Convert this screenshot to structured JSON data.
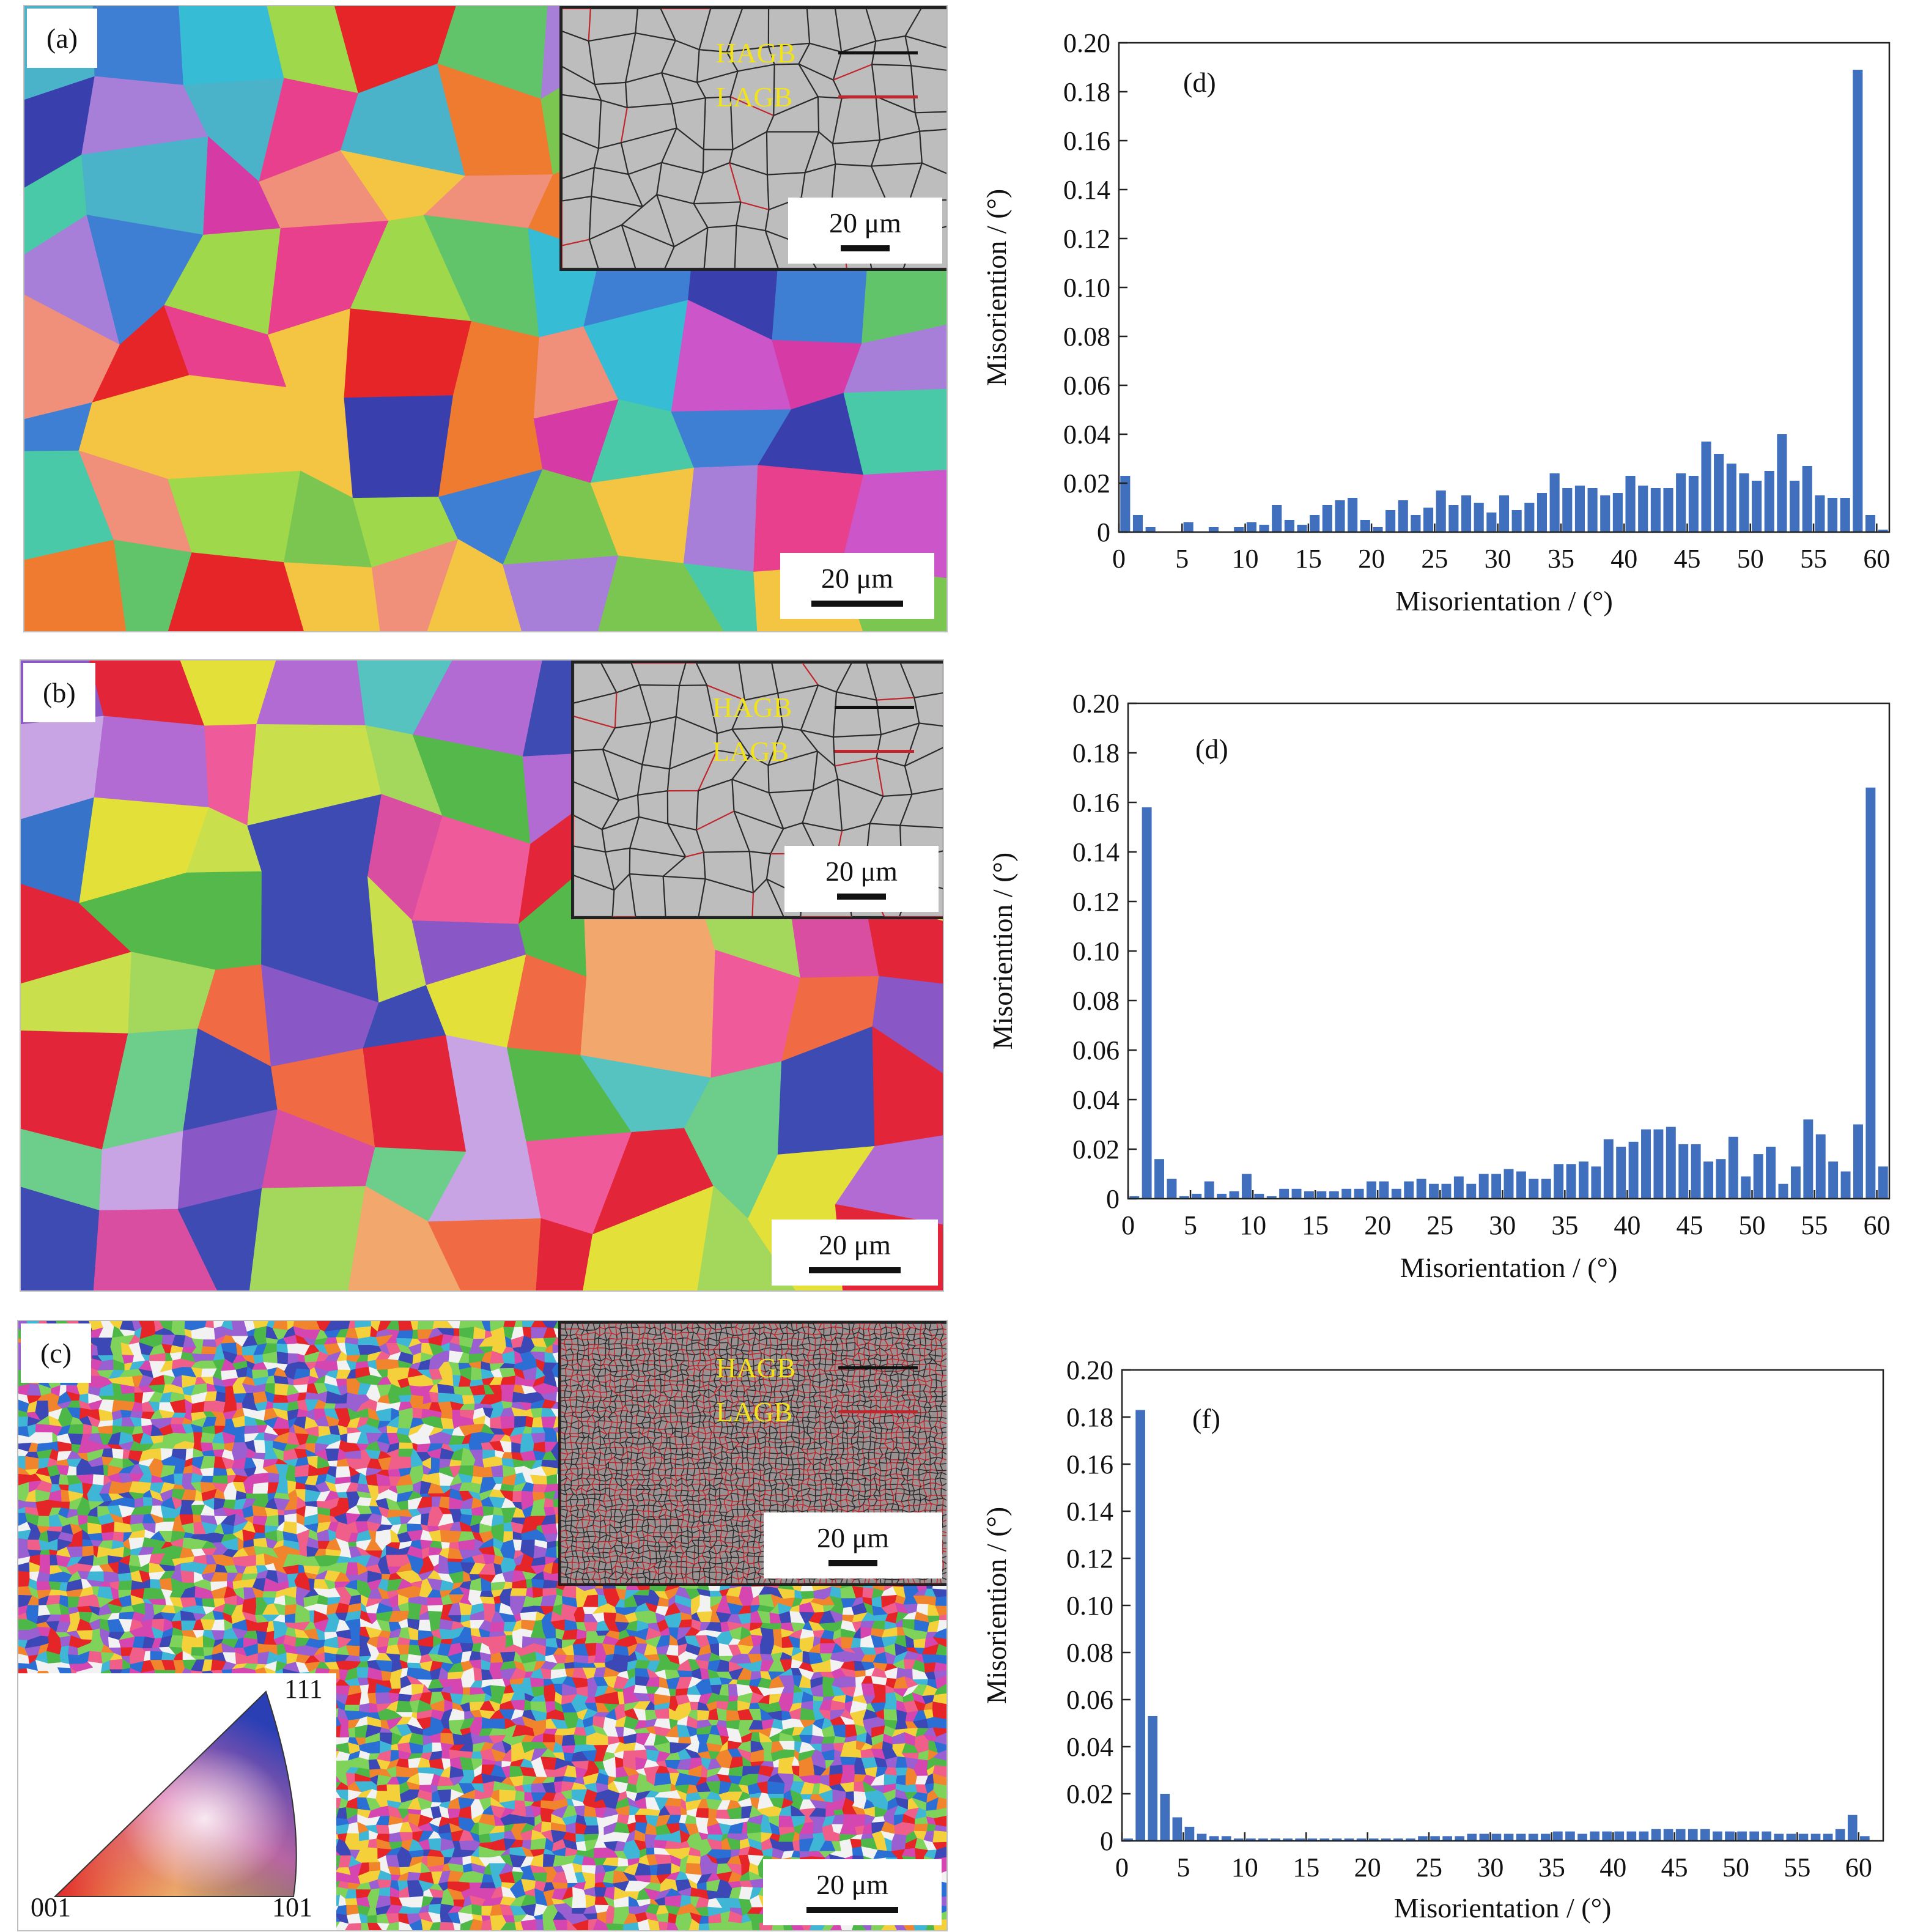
{
  "panels": [
    {
      "label": "(a)",
      "scale_bar": "20 μm",
      "inset": {
        "scale_bar": "20 μm",
        "legend": [
          {
            "name": "HAGB",
            "color": "#111111"
          },
          {
            "name": "LAGB",
            "color": "#c0262d"
          }
        ]
      },
      "colors": [
        "#a77fd8",
        "#e52528",
        "#4ab3c9",
        "#ef7b30",
        "#7bc650",
        "#d63aa5",
        "#3a3fae",
        "#49c9a7",
        "#e8408d",
        "#9fd84a",
        "#3f7fd3",
        "#f08f7a",
        "#62c46a",
        "#cb55c9",
        "#36bcd4",
        "#f4c542"
      ]
    },
    {
      "label": "(b)",
      "scale_bar": "20 μm",
      "inset": {
        "scale_bar": "20 μm",
        "legend": [
          {
            "name": "HAGB",
            "color": "#111111"
          },
          {
            "name": "LAGB",
            "color": "#c0262d"
          }
        ]
      },
      "colors": [
        "#e3253a",
        "#55b84a",
        "#3e4bb3",
        "#c9e04c",
        "#f06a43",
        "#8a57c7",
        "#d94ea0",
        "#56c3c0",
        "#3773c9",
        "#f2a76c",
        "#a3d85c",
        "#e4e03a",
        "#b16bd2",
        "#ef5a9a",
        "#6dcd8a",
        "#c8a4e5"
      ]
    },
    {
      "label": "(c)",
      "scale_bar": "20 μm",
      "inset": {
        "scale_bar": "20 μm",
        "legend": [
          {
            "name": "HAGB",
            "color": "#111111"
          },
          {
            "name": "LAGB",
            "color": "#c0262d"
          }
        ]
      },
      "ipf_key": {
        "corners": [
          "001",
          "101",
          "111"
        ]
      },
      "colors": [
        "#e52528",
        "#4db848",
        "#3b48b5",
        "#d646b0",
        "#f0852e",
        "#f4d13a",
        "#3fb6d6",
        "#9a5fd1",
        "#ef5f8a",
        "#7fd25a",
        "#f2f2f2",
        "#2c6fd4"
      ]
    }
  ],
  "chart_data": [
    {
      "type": "bar",
      "panel_label": "(d)",
      "xlabel": "Misorientation / (°)",
      "ylabel": "Misoriention / (°)",
      "xlim": [
        0,
        61
      ],
      "ylim": [
        0,
        0.2
      ],
      "x_ticks": [
        "0",
        "5",
        "10",
        "15",
        "20",
        "25",
        "30",
        "35",
        "40",
        "45",
        "50",
        "55",
        "60"
      ],
      "y_ticks": [
        "0",
        "0.02",
        "0.04",
        "0.06",
        "0.08",
        "0.10",
        "0.12",
        "0.14",
        "0.16",
        "0.18",
        "0.20"
      ],
      "x": [
        0,
        1,
        2,
        3,
        4,
        5,
        6,
        7,
        8,
        9,
        10,
        11,
        12,
        13,
        14,
        15,
        16,
        17,
        18,
        19,
        20,
        21,
        22,
        23,
        24,
        25,
        26,
        27,
        28,
        29,
        30,
        31,
        32,
        33,
        34,
        35,
        36,
        37,
        38,
        39,
        40,
        41,
        42,
        43,
        44,
        45,
        46,
        47,
        48,
        49,
        50,
        51,
        52,
        53,
        54,
        55,
        56,
        57,
        58,
        59,
        60
      ],
      "values": [
        0.023,
        0.007,
        0.002,
        0.0,
        0.0,
        0.004,
        0.0,
        0.002,
        0.0,
        0.002,
        0.004,
        0.003,
        0.011,
        0.005,
        0.003,
        0.007,
        0.011,
        0.013,
        0.014,
        0.005,
        0.002,
        0.009,
        0.013,
        0.007,
        0.01,
        0.017,
        0.011,
        0.015,
        0.012,
        0.008,
        0.015,
        0.009,
        0.012,
        0.016,
        0.024,
        0.018,
        0.019,
        0.018,
        0.015,
        0.016,
        0.023,
        0.019,
        0.018,
        0.018,
        0.024,
        0.023,
        0.037,
        0.032,
        0.028,
        0.024,
        0.021,
        0.025,
        0.04,
        0.021,
        0.027,
        0.015,
        0.014,
        0.014,
        0.189,
        0.007,
        0.001
      ]
    },
    {
      "type": "bar",
      "panel_label": "(d)",
      "xlabel": "Misorientation / (°)",
      "ylabel": "Misoriention / (°)",
      "xlim": [
        0,
        61
      ],
      "ylim": [
        0,
        0.2
      ],
      "x_ticks": [
        "0",
        "5",
        "10",
        "15",
        "20",
        "25",
        "30",
        "35",
        "40",
        "45",
        "50",
        "55",
        "60"
      ],
      "y_ticks": [
        "0",
        "0.02",
        "0.04",
        "0.06",
        "0.08",
        "0.10",
        "0.12",
        "0.14",
        "0.16",
        "0.18",
        "0.20"
      ],
      "x": [
        0,
        1,
        2,
        3,
        4,
        5,
        6,
        7,
        8,
        9,
        10,
        11,
        12,
        13,
        14,
        15,
        16,
        17,
        18,
        19,
        20,
        21,
        22,
        23,
        24,
        25,
        26,
        27,
        28,
        29,
        30,
        31,
        32,
        33,
        34,
        35,
        36,
        37,
        38,
        39,
        40,
        41,
        42,
        43,
        44,
        45,
        46,
        47,
        48,
        49,
        50,
        51,
        52,
        53,
        54,
        55,
        56,
        57,
        58,
        59,
        60
      ],
      "values": [
        0.001,
        0.158,
        0.016,
        0.008,
        0.001,
        0.002,
        0.007,
        0.002,
        0.003,
        0.01,
        0.002,
        0.001,
        0.004,
        0.004,
        0.003,
        0.003,
        0.003,
        0.004,
        0.004,
        0.007,
        0.007,
        0.004,
        0.007,
        0.008,
        0.006,
        0.006,
        0.009,
        0.006,
        0.01,
        0.01,
        0.012,
        0.011,
        0.008,
        0.008,
        0.014,
        0.014,
        0.015,
        0.013,
        0.024,
        0.021,
        0.023,
        0.028,
        0.028,
        0.029,
        0.022,
        0.022,
        0.015,
        0.016,
        0.025,
        0.009,
        0.018,
        0.021,
        0.006,
        0.013,
        0.032,
        0.026,
        0.015,
        0.011,
        0.03,
        0.166,
        0.013
      ]
    },
    {
      "type": "bar",
      "panel_label": "(f)",
      "xlabel": "Misorientation / (°)",
      "ylabel": "Misoriention / (°)",
      "xlim": [
        0,
        62
      ],
      "ylim": [
        0,
        0.2
      ],
      "x_ticks": [
        "0",
        "5",
        "10",
        "15",
        "20",
        "25",
        "30",
        "35",
        "40",
        "45",
        "50",
        "55",
        "60"
      ],
      "y_ticks": [
        "0",
        "0.02",
        "0.04",
        "0.06",
        "0.08",
        "0.10",
        "0.12",
        "0.14",
        "0.16",
        "0.18",
        "0.20"
      ],
      "x": [
        0,
        1,
        2,
        3,
        4,
        5,
        6,
        7,
        8,
        9,
        10,
        11,
        12,
        13,
        14,
        15,
        16,
        17,
        18,
        19,
        20,
        21,
        22,
        23,
        24,
        25,
        26,
        27,
        28,
        29,
        30,
        31,
        32,
        33,
        34,
        35,
        36,
        37,
        38,
        39,
        40,
        41,
        42,
        43,
        44,
        45,
        46,
        47,
        48,
        49,
        50,
        51,
        52,
        53,
        54,
        55,
        56,
        57,
        58,
        59,
        60
      ],
      "values": [
        0.001,
        0.183,
        0.053,
        0.02,
        0.01,
        0.006,
        0.003,
        0.002,
        0.002,
        0.001,
        0.001,
        0.001,
        0.001,
        0.001,
        0.001,
        0.001,
        0.001,
        0.001,
        0.001,
        0.001,
        0.001,
        0.001,
        0.001,
        0.001,
        0.002,
        0.002,
        0.002,
        0.002,
        0.003,
        0.003,
        0.003,
        0.003,
        0.003,
        0.003,
        0.003,
        0.004,
        0.004,
        0.003,
        0.004,
        0.004,
        0.004,
        0.004,
        0.004,
        0.005,
        0.005,
        0.005,
        0.005,
        0.005,
        0.004,
        0.004,
        0.004,
        0.004,
        0.004,
        0.003,
        0.003,
        0.003,
        0.003,
        0.003,
        0.005,
        0.011,
        0.002
      ]
    }
  ]
}
